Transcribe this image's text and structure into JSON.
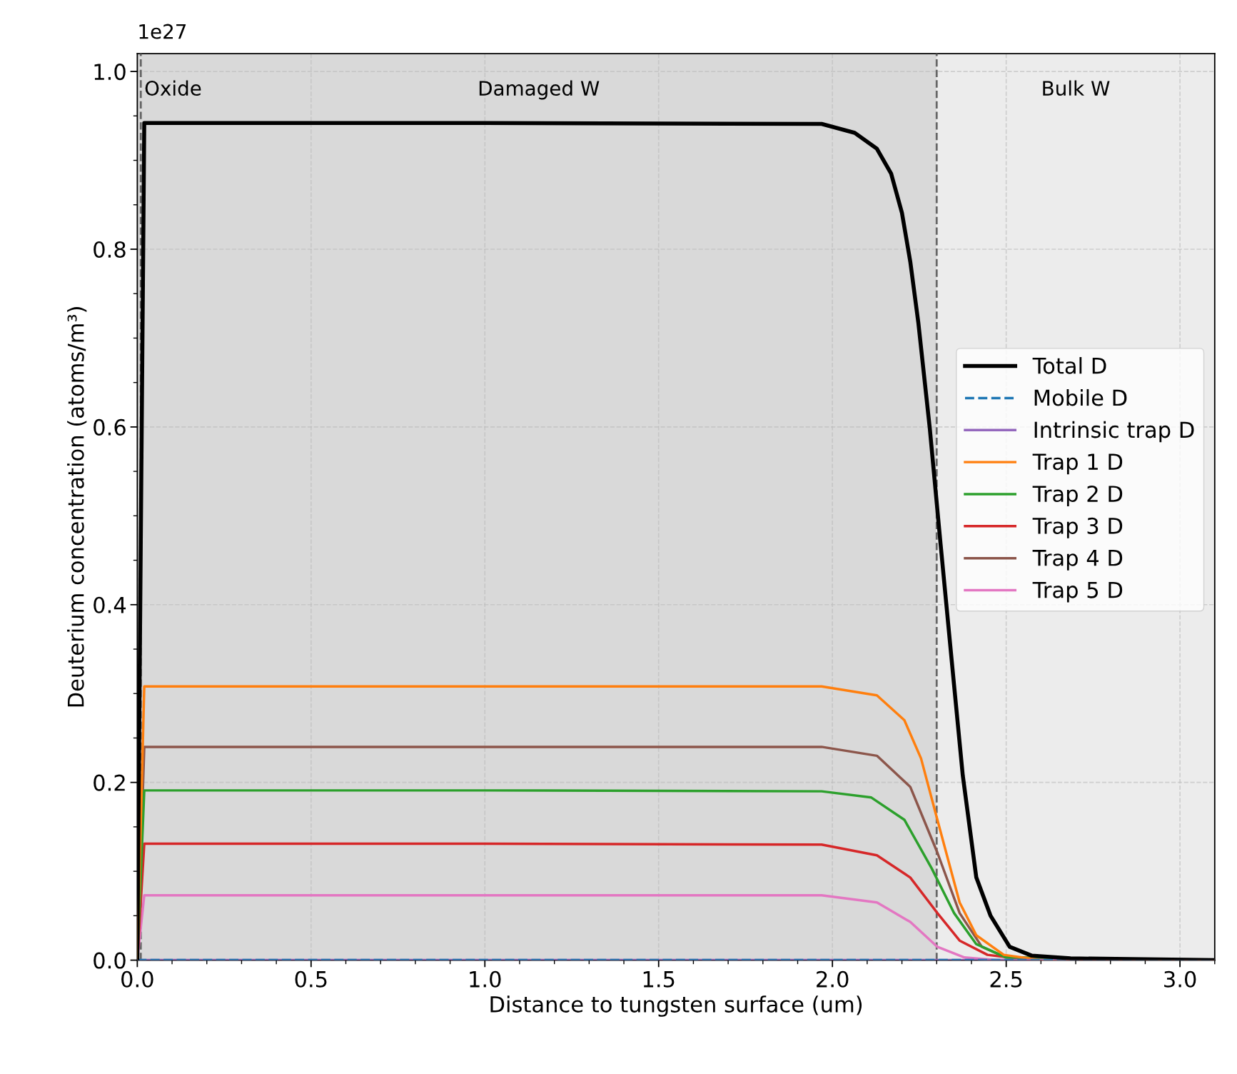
{
  "chart_data": {
    "type": "line",
    "xlabel": "Distance to tungsten surface (um)",
    "ylabel": "Deuterium concentration (atoms/m³)",
    "xlim": [
      0.0,
      3.1
    ],
    "ylim": [
      0.0,
      1.02
    ],
    "xticks": [
      {
        "value": 0,
        "label": "0.0"
      },
      0.5,
      {
        "value": 1,
        "label": "1.0"
      },
      1.5,
      {
        "value": 2,
        "label": "2.0"
      },
      2.5,
      {
        "value": 3,
        "label": "3.0"
      }
    ],
    "yticks": [
      {
        "value": 0,
        "label": "0.0"
      },
      0.2,
      0.4,
      0.6,
      0.8,
      {
        "value": 1,
        "label": "1.0"
      }
    ],
    "grid": true,
    "legend": "right",
    "marker": "none",
    "annotations": [
      "1e27"
    ],
    "bands": [
      {
        "axis": "x",
        "from": 0.0,
        "to": 0.01,
        "label": "Oxide",
        "color": "#d9d9d9"
      },
      {
        "axis": "x",
        "from": 0.01,
        "to": 2.3,
        "label": "Damaged W",
        "color": "#d9d9d9"
      },
      {
        "axis": "x",
        "from": 2.3,
        "to": 3.1,
        "label": "Bulk W",
        "color": "#ececec"
      }
    ],
    "ref_lines": [
      {
        "axis": "x",
        "value": 0.01,
        "color": "#666666",
        "line_style": "dashed"
      },
      {
        "axis": "x",
        "value": 2.3,
        "color": "#666666",
        "line_style": "dashed"
      }
    ],
    "series": [
      {
        "name": "Total D",
        "color": "#000000",
        "line_style": "solid",
        "x": [
          0.0,
          0.02,
          1.0,
          1.969,
          2.064,
          2.128,
          2.169,
          2.2,
          2.224,
          2.247,
          2.28,
          2.311,
          2.343,
          2.375,
          2.414,
          2.455,
          2.51,
          2.574,
          2.685,
          3.1
        ],
        "values": [
          0.0,
          0.942,
          0.942,
          0.941,
          0.931,
          0.913,
          0.885,
          0.841,
          0.786,
          0.718,
          0.599,
          0.469,
          0.338,
          0.208,
          0.093,
          0.05,
          0.015,
          0.005,
          0.002,
          0.0
        ]
      },
      {
        "name": "Mobile D",
        "color": "#1f77b4",
        "line_style": "dashed",
        "x": [
          0.0,
          3.1
        ],
        "values": [
          0.0,
          0.0
        ]
      },
      {
        "name": "Intrinsic trap D",
        "color": "#9467bd",
        "line_style": "solid",
        "x": [
          0.0,
          3.1
        ],
        "values": [
          0.0,
          0.0
        ]
      },
      {
        "name": "Trap 1 D",
        "color": "#ff7f0e",
        "line_style": "solid",
        "x": [
          0.0,
          0.02,
          1.0,
          1.969,
          2.128,
          2.207,
          2.255,
          2.302,
          2.366,
          2.414,
          2.493,
          2.6,
          3.1
        ],
        "values": [
          0.0,
          0.308,
          0.308,
          0.308,
          0.298,
          0.27,
          0.227,
          0.158,
          0.065,
          0.028,
          0.006,
          0.0,
          0.0
        ]
      },
      {
        "name": "Trap 2 D",
        "color": "#2ca02c",
        "line_style": "solid",
        "x": [
          0.0,
          0.02,
          1.0,
          1.969,
          2.112,
          2.207,
          2.286,
          2.35,
          2.414,
          2.5,
          3.1
        ],
        "values": [
          0.0,
          0.191,
          0.191,
          0.19,
          0.183,
          0.158,
          0.103,
          0.053,
          0.018,
          0.003,
          0.0
        ]
      },
      {
        "name": "Trap 3 D",
        "color": "#d62728",
        "line_style": "solid",
        "x": [
          0.0,
          0.02,
          1.0,
          1.969,
          2.128,
          2.224,
          2.302,
          2.366,
          2.446,
          2.57,
          3.1
        ],
        "values": [
          0.0,
          0.131,
          0.131,
          0.13,
          0.118,
          0.093,
          0.053,
          0.022,
          0.006,
          0.0,
          0.0
        ]
      },
      {
        "name": "Trap 4 D",
        "color": "#8c564b",
        "line_style": "solid",
        "x": [
          0.0,
          0.02,
          1.0,
          1.969,
          2.128,
          2.224,
          2.302,
          2.366,
          2.43,
          2.5,
          3.1
        ],
        "values": [
          0.0,
          0.24,
          0.24,
          0.24,
          0.23,
          0.195,
          0.121,
          0.053,
          0.015,
          0.003,
          0.0
        ]
      },
      {
        "name": "Trap 5 D",
        "color": "#e377c2",
        "line_style": "solid",
        "x": [
          0.0,
          0.02,
          1.0,
          1.969,
          2.128,
          2.224,
          2.302,
          2.38,
          2.47,
          3.1
        ],
        "values": [
          0.0,
          0.073,
          0.073,
          0.073,
          0.065,
          0.043,
          0.015,
          0.003,
          0.0,
          0.0
        ]
      }
    ]
  }
}
